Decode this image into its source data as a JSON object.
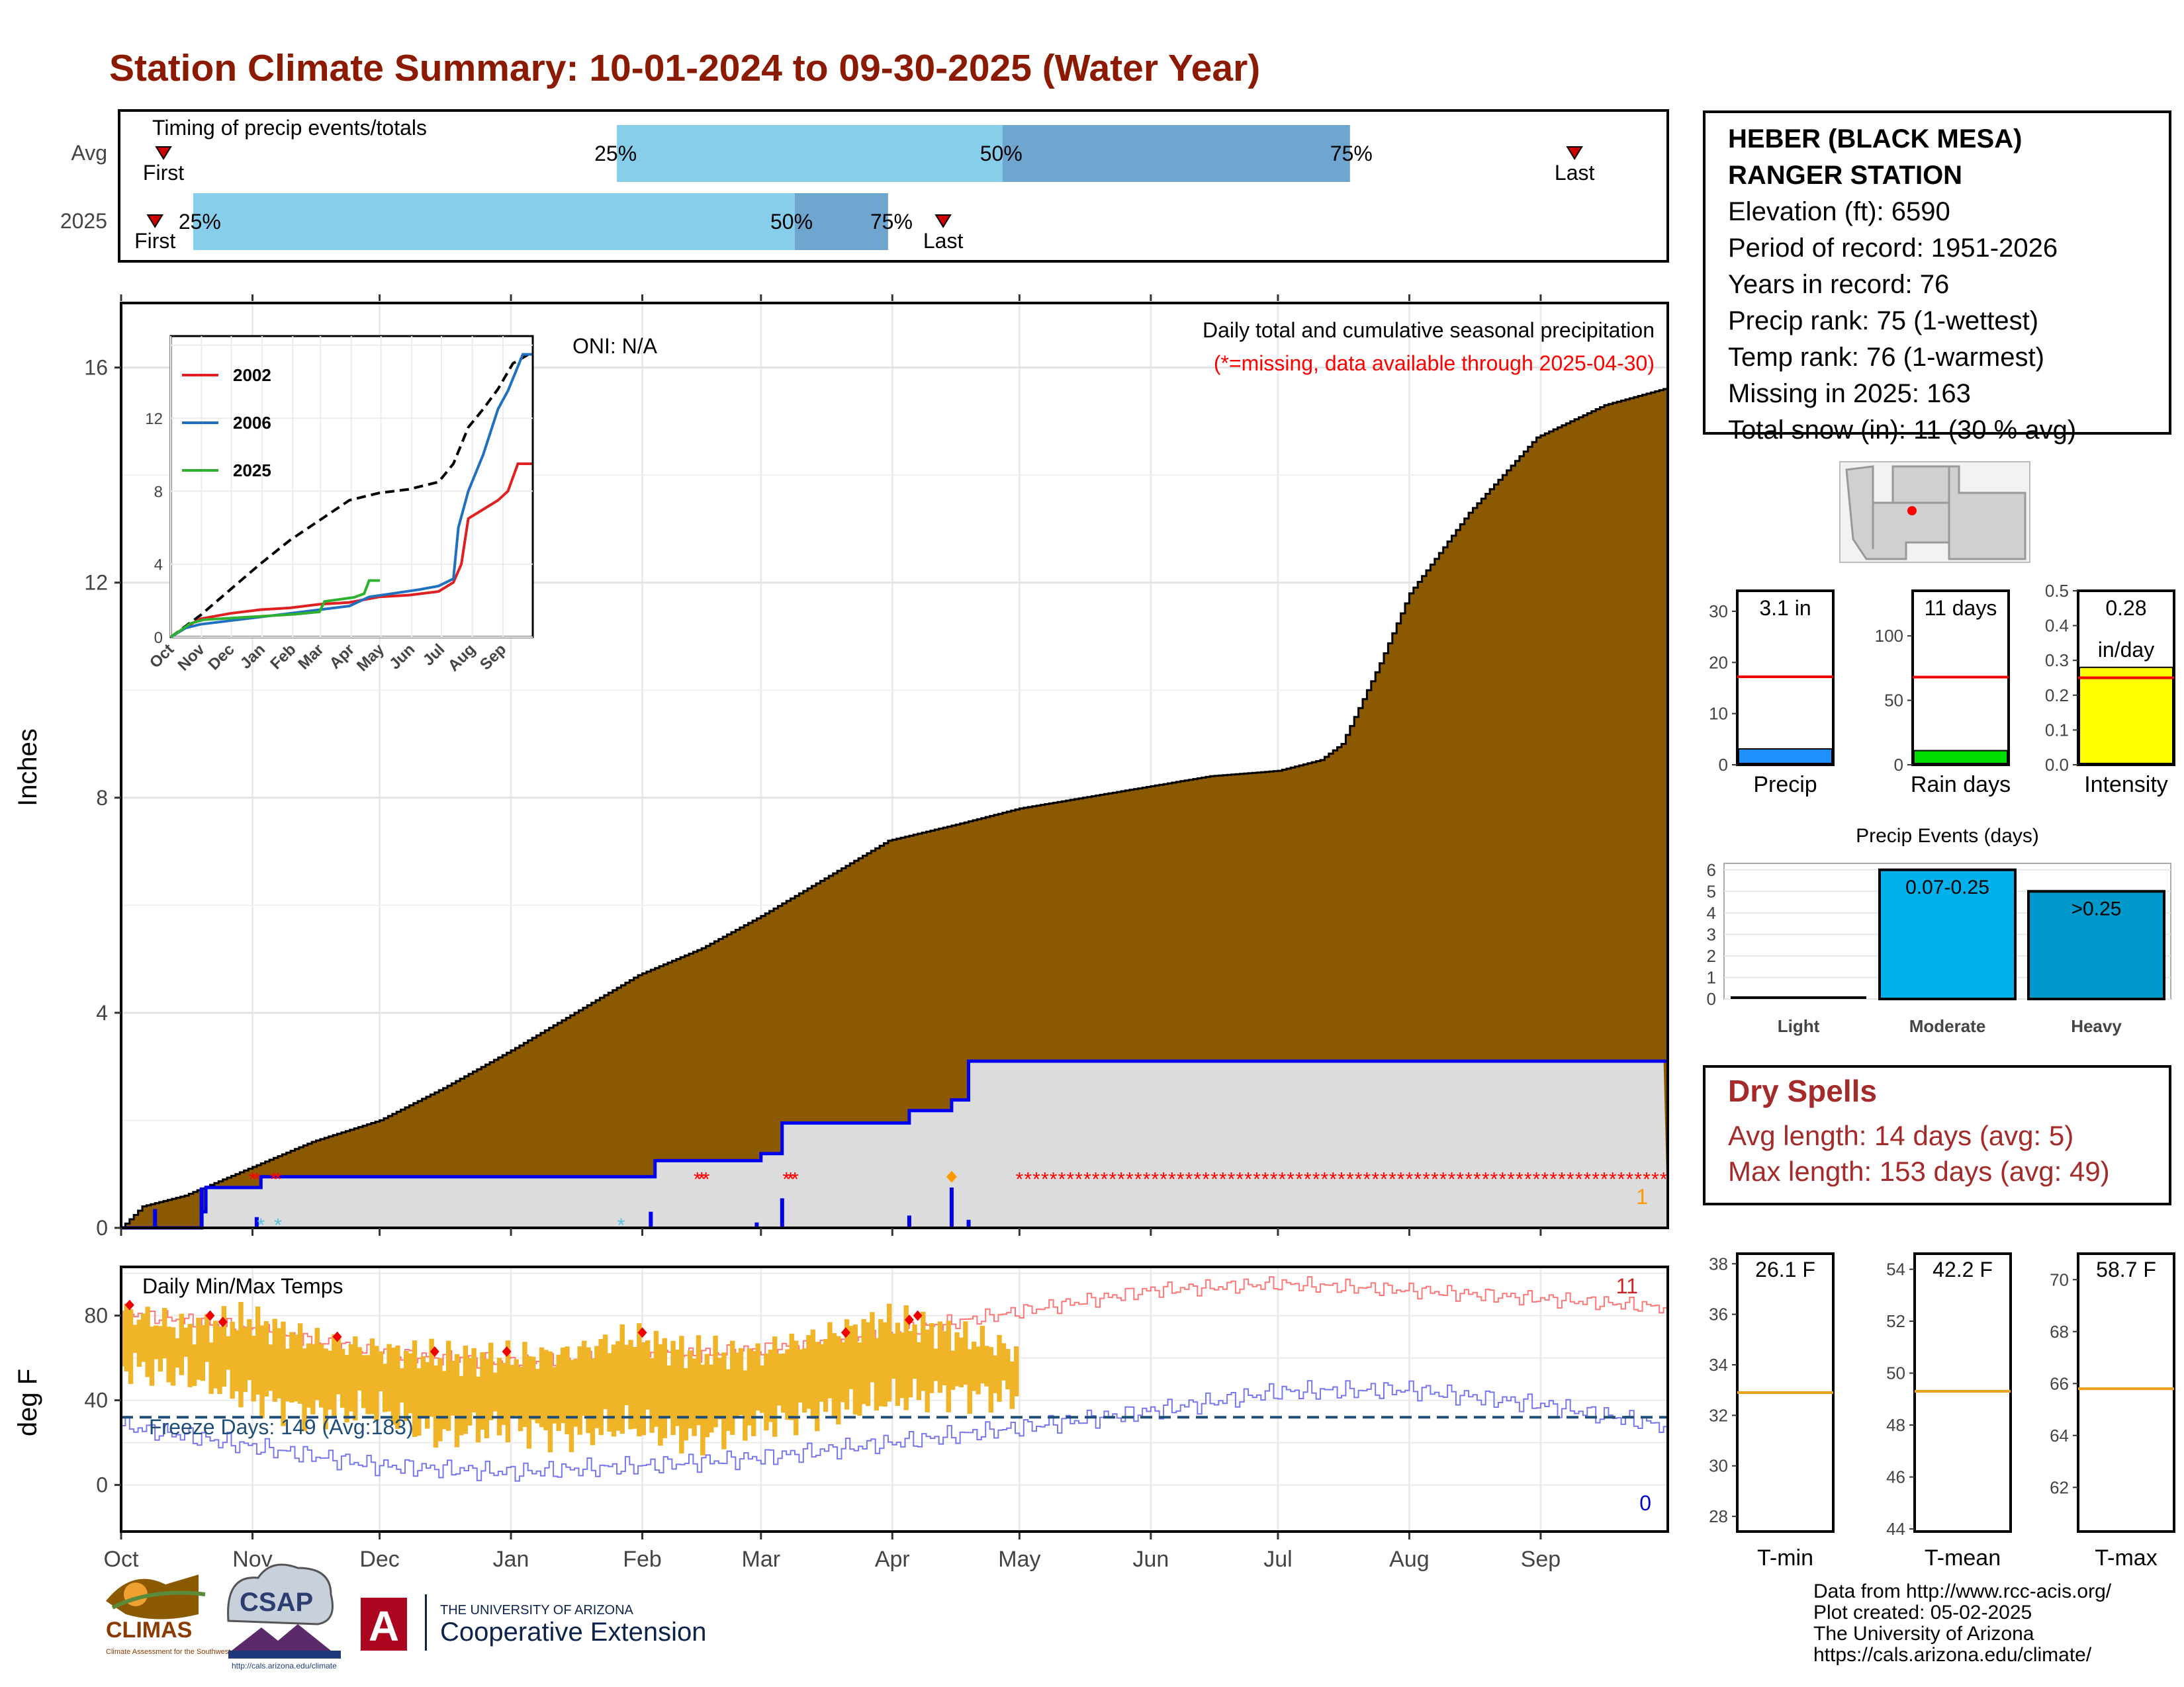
{
  "title": "Station Climate Summary: 10-01-2024 to 09-30-2025 (Water Year)",
  "colors": {
    "title": "#8b1a00",
    "precip_fill": "#8b5a00",
    "light_blue": "#87ceeb",
    "mid_blue": "#6ea6cf",
    "dry_red": "#a52a2a",
    "temp_bar": "#f0b429",
    "missing": "#ff0000"
  },
  "timing": {
    "label": "Timing of precip events/totals",
    "rows": [
      "Avg",
      "2025"
    ],
    "avg": {
      "first": "First",
      "last": "Last",
      "p25": "25%",
      "p50": "50%",
      "p75": "75%",
      "first_day": 10,
      "p25_day": 117,
      "p50_day": 208,
      "p75_day": 290,
      "last_day": 343
    },
    "y2025": {
      "first": "First",
      "last": "Last",
      "p25": "25%",
      "p50": "50%",
      "p75": "75%",
      "first_day": 8,
      "p25_day": 17,
      "p50_day": 159,
      "p75_day": 181,
      "last_day": 194
    }
  },
  "info": {
    "station_line1": "HEBER (BLACK MESA)",
    "station_line2": "RANGER STATION",
    "elevation": "Elevation (ft): 6590",
    "period": "Period of record: 1951-2026",
    "years": "Years in record: 76",
    "precip_rank": "Precip rank: 75 (1-wettest)",
    "temp_rank": "Temp rank: 76 (1-warmest)",
    "missing": "Missing in 2025: 163",
    "snow": "Total snow (in): 11 (30 % avg)"
  },
  "month_labels": [
    "Oct",
    "Nov",
    "Dec",
    "Jan",
    "Feb",
    "Mar",
    "Apr",
    "May",
    "Jun",
    "Jul",
    "Aug",
    "Sep"
  ],
  "main_panel": {
    "ylabel": "Inches",
    "oni": "ONI: N/A",
    "caption": "Daily total and cumulative seasonal precipitation",
    "missing_note": "(*=missing, data available through 2025-04-30)",
    "snow_count": "1",
    "yticks": [
      "0",
      "4",
      "8",
      "12",
      "16"
    ]
  },
  "chart_data": [
    {
      "type": "area",
      "name": "cumulative-precip",
      "ylabel": "Inches",
      "ylim": [
        0,
        17.2
      ],
      "avg_cumulative": {
        "x_day": [
          0,
          5,
          15,
          30,
          45,
          61,
          76,
          92,
          107,
          122,
          137,
          151,
          166,
          181,
          197,
          212,
          227,
          242,
          257,
          273,
          283,
          288,
          297,
          304,
          318,
          334,
          350,
          364
        ],
        "y": [
          0,
          0.4,
          0.6,
          1.1,
          1.6,
          2.0,
          2.6,
          3.3,
          4.0,
          4.7,
          5.2,
          5.8,
          6.5,
          7.2,
          7.5,
          7.8,
          8.0,
          8.2,
          8.4,
          8.5,
          8.7,
          9.0,
          10.5,
          11.8,
          13.3,
          14.7,
          15.3,
          15.6
        ]
      },
      "cumulative_2025": {
        "x_day": [
          0,
          10,
          19,
          20,
          32,
          33,
          125,
          126,
          150,
          151,
          155,
          156,
          185,
          186,
          195,
          196,
          200,
          364
        ],
        "y": [
          0,
          0,
          0.3,
          0.75,
          0.75,
          0.95,
          0.95,
          1.25,
          1.25,
          1.38,
          1.38,
          1.95,
          1.95,
          2.18,
          2.18,
          2.38,
          3.1,
          3.1
        ]
      }
    },
    {
      "type": "line",
      "name": "inset-comparison",
      "ylim": [
        0,
        16.5
      ],
      "yticks": [
        "0",
        "4",
        "8",
        "12"
      ],
      "series": [
        {
          "name": "2002",
          "color": "#e02020",
          "x_day": [
            0,
            20,
            30,
            60,
            90,
            120,
            150,
            180,
            210,
            240,
            270,
            285,
            293,
            300,
            315,
            330,
            340,
            350,
            364
          ],
          "y": [
            0,
            0.7,
            1.0,
            1.3,
            1.5,
            1.6,
            1.8,
            1.9,
            2.2,
            2.3,
            2.5,
            3.0,
            4.0,
            6.5,
            7.0,
            7.5,
            8.0,
            9.5,
            9.5
          ]
        },
        {
          "name": "2006",
          "color": "#2070c0",
          "x_day": [
            0,
            15,
            30,
            60,
            90,
            120,
            150,
            180,
            200,
            225,
            250,
            270,
            285,
            290,
            300,
            315,
            330,
            340,
            355,
            364
          ],
          "y": [
            0,
            0.5,
            0.7,
            0.9,
            1.1,
            1.3,
            1.5,
            1.7,
            2.2,
            2.4,
            2.6,
            2.8,
            3.2,
            6.0,
            8.0,
            10.0,
            12.5,
            13.5,
            15.5,
            15.5
          ]
        },
        {
          "name": "2025",
          "color": "#30b030",
          "x_day": [
            0,
            20,
            33,
            125,
            150,
            155,
            185,
            195,
            200,
            211
          ],
          "y": [
            0,
            0.75,
            0.95,
            1.25,
            1.38,
            1.95,
            2.18,
            2.38,
            3.1,
            3.1
          ]
        }
      ],
      "avg_line": {
        "x_day": [
          0,
          30,
          60,
          90,
          120,
          150,
          180,
          210,
          240,
          270,
          285,
          300,
          315,
          330,
          345,
          364
        ],
        "y": [
          0,
          1.2,
          2.6,
          4.0,
          5.3,
          6.4,
          7.5,
          7.9,
          8.1,
          8.5,
          9.5,
          11.5,
          12.5,
          13.6,
          15.0,
          15.6
        ]
      }
    },
    {
      "type": "bar",
      "name": "summary-bars",
      "bars": [
        {
          "label": "Precip",
          "value": 3.1,
          "value_text": "3.1 in",
          "avg": 17.2,
          "ymax": 34,
          "yticks": [
            "0",
            "10",
            "20",
            "30"
          ],
          "color": "#1e90ff"
        },
        {
          "label": "Rain days",
          "value": 11,
          "value_text": "11 days",
          "avg": 68,
          "ymax": 135,
          "yticks": [
            "0",
            "50",
            "100"
          ],
          "color": "#00dd00"
        },
        {
          "label": "Intensity",
          "value": 0.28,
          "value_text": "0.28",
          "value_text2": "in/day",
          "avg": 0.25,
          "ymax": 0.5,
          "yticks": [
            "0.0",
            "0.1",
            "0.2",
            "0.3",
            "0.4",
            "0.5"
          ],
          "color": "#ffff00"
        }
      ]
    },
    {
      "type": "bar",
      "name": "precip-events",
      "title": "Precip Events (days)",
      "categories": [
        "Light",
        "Moderate",
        "Heavy"
      ],
      "values": [
        0,
        6,
        5
      ],
      "bar_labels": [
        "",
        "0.07-0.25",
        ">0.25"
      ],
      "yticks": [
        "0",
        "1",
        "2",
        "3",
        "4",
        "5",
        "6"
      ],
      "ylim": [
        0,
        6.3
      ]
    },
    {
      "type": "line",
      "name": "daily-temps",
      "title": "Daily Min/Max Temps",
      "ylabel": "deg F",
      "ylim": [
        -22,
        103
      ],
      "yticks": [
        "0",
        "40",
        "80"
      ],
      "freeze_label": "Freeze Days: 149 (Avg:183)",
      "freeze_line": 32,
      "count_top": "11",
      "count_bottom": "0",
      "avg_max": {
        "x_day": [
          0,
          31,
          61,
          92,
          123,
          151,
          182,
          212,
          243,
          273,
          304,
          335,
          364
        ],
        "y": [
          82,
          73,
          62,
          58,
          60,
          64,
          72,
          82,
          92,
          95,
          92,
          88,
          84
        ]
      },
      "avg_min": {
        "x_day": [
          0,
          31,
          61,
          92,
          123,
          151,
          182,
          212,
          243,
          273,
          304,
          335,
          364
        ],
        "y": [
          28,
          18,
          9,
          6,
          9,
          13,
          20,
          27,
          35,
          44,
          45,
          38,
          28
        ]
      },
      "obs_max": {
        "x_day": [
          0,
          15,
          30,
          45,
          60,
          75,
          90,
          105,
          120,
          135,
          150,
          165,
          180,
          195,
          210
        ],
        "y": [
          82,
          74,
          78,
          68,
          64,
          60,
          60,
          62,
          70,
          62,
          62,
          70,
          78,
          72,
          64
        ]
      },
      "obs_min": {
        "x_day": [
          0,
          15,
          30,
          45,
          60,
          75,
          90,
          105,
          120,
          135,
          150,
          165,
          180,
          195,
          210
        ],
        "y": [
          42,
          38,
          28,
          20,
          22,
          10,
          14,
          10,
          14,
          8,
          15,
          20,
          26,
          30,
          28
        ]
      }
    },
    {
      "type": "bar",
      "name": "temp-summary",
      "bars": [
        {
          "label": "T-min",
          "value_text": "26.1 F",
          "value": 26.1,
          "avg": 32.9,
          "ylim": [
            27.4,
            38.4
          ],
          "yticks": [
            "28",
            "30",
            "32",
            "34",
            "36",
            "38"
          ]
        },
        {
          "label": "T-mean",
          "value_text": "42.2 F",
          "value": 42.2,
          "avg": 49.3,
          "ylim": [
            43.9,
            54.6
          ],
          "yticks": [
            "44",
            "46",
            "48",
            "50",
            "52",
            "54"
          ]
        },
        {
          "label": "T-max",
          "value_text": "58.7 F",
          "value": 58.7,
          "avg": 65.8,
          "ylim": [
            60.3,
            71.0
          ],
          "yticks": [
            "62",
            "64",
            "66",
            "68",
            "70"
          ]
        }
      ]
    }
  ],
  "dry": {
    "title": "Dry Spells",
    "avg_length": "Avg length: 14 days (avg: 5)",
    "max_length": "Max length: 153 days (avg: 49)"
  },
  "footer": {
    "line1": "Data from http://www.rcc-acis.org/",
    "line2": "Plot created: 05-02-2025",
    "line3": "The University of Arizona",
    "line4": "https://cals.arizona.edu/climate/",
    "climas": "CLIMAS",
    "climas_sub": "Climate Assessment for the Southwest",
    "csap": "CSAP",
    "csap_url": "http://cals.arizona.edu/climate",
    "ua_letter": "A",
    "ua_line1": "THE UNIVERSITY OF ARIZONA",
    "ua_line2": "Cooperative Extension"
  }
}
